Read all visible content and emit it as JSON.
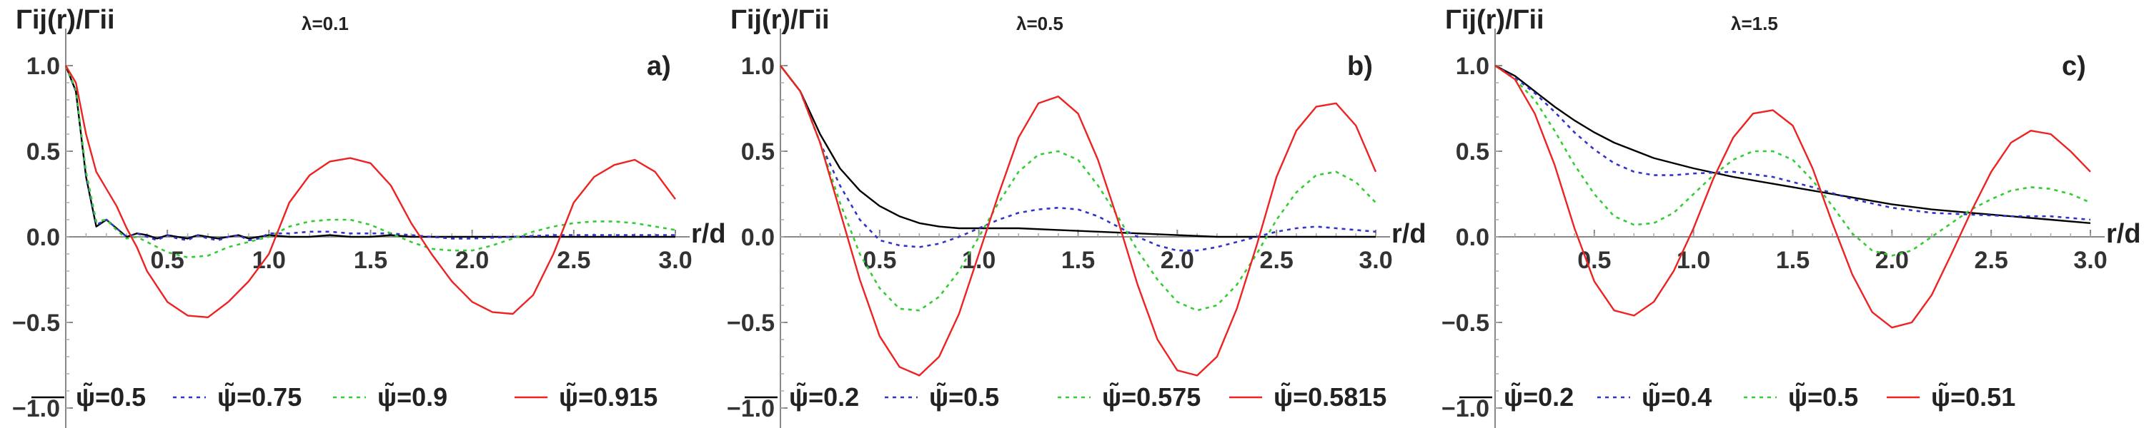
{
  "chart_data": [
    {
      "type": "line",
      "title": "λ=0.1",
      "panel_label": "a)",
      "ylabel": "Γij(r)/Γii",
      "xlabel": "r/d",
      "xlim": [
        0,
        3.0
      ],
      "ylim": [
        -1.0,
        1.0
      ],
      "xticks": [
        "0.5",
        "1.0",
        "1.5",
        "2.0",
        "2.5",
        "3.0"
      ],
      "yticks": [
        "1.0",
        "0.5",
        "0.0",
        "-0.5",
        "-1.0"
      ],
      "grid": false,
      "legend_position": "bottom",
      "series": [
        {
          "name": "ψ̃=0.5",
          "color": "#000000",
          "dash": "solid",
          "x": [
            0,
            0.05,
            0.1,
            0.15,
            0.2,
            0.25,
            0.3,
            0.35,
            0.4,
            0.45,
            0.5,
            0.55,
            0.6,
            0.65,
            0.7,
            0.75,
            0.8,
            0.85,
            0.9,
            0.95,
            1.0,
            1.1,
            1.2,
            1.3,
            1.4,
            1.5,
            1.6,
            1.7,
            1.8,
            1.9,
            2.0,
            2.2,
            2.4,
            2.6,
            2.8,
            3.0
          ],
          "y": [
            1.0,
            0.85,
            0.35,
            0.06,
            0.1,
            0.05,
            0.0,
            0.02,
            0.01,
            -0.01,
            0.01,
            0.0,
            -0.01,
            0.01,
            0.0,
            -0.01,
            0.0,
            0.01,
            -0.01,
            0.0,
            0.01,
            0.0,
            0.0,
            0.01,
            0.0,
            0.0,
            0.01,
            0.0,
            0.0,
            0.0,
            0.0,
            0.0,
            0.0,
            0.0,
            0.0,
            0.0
          ]
        },
        {
          "name": "ψ̃=0.75",
          "color": "#3333cc",
          "dash": "dotted",
          "x": [
            0,
            0.05,
            0.1,
            0.15,
            0.2,
            0.25,
            0.3,
            0.35,
            0.4,
            0.45,
            0.5,
            0.55,
            0.6,
            0.65,
            0.7,
            0.75,
            0.8,
            0.85,
            0.9,
            0.95,
            1.0,
            1.1,
            1.2,
            1.3,
            1.4,
            1.5,
            1.6,
            1.7,
            1.8,
            1.9,
            2.0,
            2.2,
            2.4,
            2.6,
            2.8,
            3.0
          ],
          "y": [
            1.0,
            0.85,
            0.36,
            0.07,
            0.1,
            0.05,
            0.0,
            0.02,
            0.0,
            -0.02,
            0.01,
            -0.01,
            -0.02,
            0.01,
            -0.01,
            -0.02,
            0.0,
            0.01,
            -0.02,
            -0.01,
            0.02,
            0.02,
            0.03,
            0.03,
            0.02,
            0.02,
            0.02,
            0.01,
            0.0,
            -0.01,
            -0.01,
            0.0,
            0.01,
            0.01,
            0.01,
            0.01
          ]
        },
        {
          "name": "ψ̃=0.9",
          "color": "#33cc33",
          "dash": "dotted",
          "x": [
            0,
            0.05,
            0.1,
            0.15,
            0.2,
            0.25,
            0.3,
            0.35,
            0.4,
            0.45,
            0.5,
            0.6,
            0.7,
            0.8,
            0.9,
            1.0,
            1.1,
            1.2,
            1.3,
            1.4,
            1.5,
            1.6,
            1.7,
            1.8,
            1.9,
            2.0,
            2.1,
            2.2,
            2.3,
            2.4,
            2.5,
            2.6,
            2.7,
            2.8,
            2.9,
            3.0
          ],
          "y": [
            1.0,
            0.86,
            0.38,
            0.09,
            0.1,
            0.04,
            -0.01,
            0.0,
            -0.03,
            -0.06,
            -0.09,
            -0.12,
            -0.11,
            -0.06,
            -0.03,
            0.0,
            0.06,
            0.09,
            0.1,
            0.1,
            0.07,
            0.02,
            -0.03,
            -0.07,
            -0.08,
            -0.08,
            -0.05,
            -0.01,
            0.03,
            0.06,
            0.08,
            0.09,
            0.09,
            0.08,
            0.06,
            0.04
          ]
        },
        {
          "name": "ψ̃=0.915",
          "color": "#ee2222",
          "dash": "solid",
          "x": [
            0,
            0.05,
            0.1,
            0.15,
            0.2,
            0.25,
            0.3,
            0.35,
            0.4,
            0.5,
            0.6,
            0.7,
            0.8,
            0.9,
            1.0,
            1.1,
            1.2,
            1.3,
            1.4,
            1.5,
            1.6,
            1.7,
            1.8,
            1.9,
            2.0,
            2.1,
            2.2,
            2.3,
            2.4,
            2.5,
            2.6,
            2.7,
            2.8,
            2.9,
            3.0
          ],
          "y": [
            1.0,
            0.9,
            0.6,
            0.38,
            0.28,
            0.18,
            0.05,
            -0.06,
            -0.2,
            -0.38,
            -0.46,
            -0.47,
            -0.38,
            -0.26,
            -0.1,
            0.2,
            0.36,
            0.44,
            0.46,
            0.43,
            0.3,
            0.08,
            -0.1,
            -0.26,
            -0.38,
            -0.44,
            -0.45,
            -0.34,
            -0.1,
            0.2,
            0.35,
            0.42,
            0.45,
            0.38,
            0.22
          ]
        }
      ]
    },
    {
      "type": "line",
      "title": "λ=0.5",
      "panel_label": "b)",
      "ylabel": "Γij(r)/Γii",
      "xlabel": "r/d",
      "xlim": [
        0,
        3.0
      ],
      "ylim": [
        -1.0,
        1.0
      ],
      "xticks": [
        "0.5",
        "1.0",
        "1.5",
        "2.0",
        "2.5",
        "3.0"
      ],
      "yticks": [
        "1.0",
        "0.5",
        "0.0",
        "-0.5",
        "-1.0"
      ],
      "grid": false,
      "legend_position": "bottom",
      "series": [
        {
          "name": "ψ̃=0.2",
          "color": "#000000",
          "dash": "solid",
          "x": [
            0,
            0.1,
            0.2,
            0.3,
            0.4,
            0.5,
            0.6,
            0.7,
            0.8,
            0.9,
            1.0,
            1.2,
            1.4,
            1.6,
            1.8,
            2.0,
            2.2,
            2.4,
            2.6,
            2.8,
            3.0
          ],
          "y": [
            1.0,
            0.85,
            0.6,
            0.4,
            0.27,
            0.18,
            0.12,
            0.08,
            0.06,
            0.05,
            0.05,
            0.05,
            0.04,
            0.03,
            0.02,
            0.01,
            0.0,
            0.0,
            0.0,
            0.0,
            0.0
          ]
        },
        {
          "name": "ψ̃=0.5",
          "color": "#3333cc",
          "dash": "dotted",
          "x": [
            0,
            0.1,
            0.2,
            0.3,
            0.4,
            0.5,
            0.6,
            0.7,
            0.8,
            0.9,
            1.0,
            1.1,
            1.2,
            1.3,
            1.4,
            1.5,
            1.6,
            1.7,
            1.8,
            1.9,
            2.0,
            2.1,
            2.2,
            2.3,
            2.4,
            2.5,
            2.6,
            2.7,
            2.8,
            2.9,
            3.0
          ],
          "y": [
            1.0,
            0.85,
            0.55,
            0.3,
            0.1,
            -0.02,
            -0.05,
            -0.06,
            -0.04,
            0.0,
            0.05,
            0.1,
            0.14,
            0.16,
            0.17,
            0.16,
            0.12,
            0.06,
            0.0,
            -0.05,
            -0.08,
            -0.08,
            -0.06,
            -0.03,
            0.0,
            0.03,
            0.05,
            0.06,
            0.05,
            0.04,
            0.03
          ]
        },
        {
          "name": "ψ̃=0.575",
          "color": "#33cc33",
          "dash": "dotted",
          "x": [
            0,
            0.1,
            0.2,
            0.3,
            0.4,
            0.5,
            0.6,
            0.7,
            0.8,
            0.9,
            1.0,
            1.1,
            1.2,
            1.3,
            1.4,
            1.5,
            1.6,
            1.7,
            1.8,
            1.9,
            2.0,
            2.1,
            2.2,
            2.3,
            2.4,
            2.5,
            2.6,
            2.7,
            2.8,
            2.9,
            3.0
          ],
          "y": [
            1.0,
            0.85,
            0.55,
            0.2,
            -0.1,
            -0.3,
            -0.42,
            -0.43,
            -0.35,
            -0.2,
            0.0,
            0.2,
            0.38,
            0.48,
            0.5,
            0.45,
            0.3,
            0.12,
            -0.08,
            -0.25,
            -0.38,
            -0.43,
            -0.4,
            -0.28,
            -0.1,
            0.1,
            0.26,
            0.36,
            0.38,
            0.32,
            0.2
          ]
        },
        {
          "name": "ψ̃=0.5815",
          "color": "#ee2222",
          "dash": "solid",
          "x": [
            0,
            0.1,
            0.2,
            0.3,
            0.4,
            0.5,
            0.6,
            0.7,
            0.8,
            0.9,
            1.0,
            1.1,
            1.2,
            1.3,
            1.4,
            1.5,
            1.6,
            1.7,
            1.8,
            1.9,
            2.0,
            2.1,
            2.2,
            2.3,
            2.4,
            2.5,
            2.6,
            2.7,
            2.8,
            2.9,
            3.0
          ],
          "y": [
            1.0,
            0.85,
            0.55,
            0.15,
            -0.25,
            -0.58,
            -0.76,
            -0.81,
            -0.7,
            -0.45,
            -0.1,
            0.25,
            0.58,
            0.78,
            0.82,
            0.72,
            0.45,
            0.1,
            -0.28,
            -0.6,
            -0.78,
            -0.81,
            -0.7,
            -0.42,
            -0.05,
            0.35,
            0.62,
            0.76,
            0.78,
            0.65,
            0.38
          ]
        }
      ]
    },
    {
      "type": "line",
      "title": "λ=1.5",
      "panel_label": "c)",
      "ylabel": "Γij(r)/Γii",
      "xlabel": "r/d",
      "xlim": [
        0,
        3.0
      ],
      "ylim": [
        -1.0,
        1.0
      ],
      "xticks": [
        "0.5",
        "1.0",
        "1.5",
        "2.0",
        "2.5",
        "3.0"
      ],
      "yticks": [
        "1.0",
        "0.5",
        "0.0",
        "-0.5",
        "-1.0"
      ],
      "grid": false,
      "legend_position": "bottom",
      "series": [
        {
          "name": "ψ̃=0.2",
          "color": "#000000",
          "dash": "solid",
          "x": [
            0,
            0.1,
            0.2,
            0.3,
            0.4,
            0.5,
            0.6,
            0.8,
            1.0,
            1.2,
            1.4,
            1.6,
            1.8,
            2.0,
            2.2,
            2.4,
            2.6,
            2.8,
            3.0
          ],
          "y": [
            1.0,
            0.94,
            0.85,
            0.76,
            0.68,
            0.61,
            0.55,
            0.46,
            0.4,
            0.35,
            0.31,
            0.27,
            0.23,
            0.19,
            0.16,
            0.14,
            0.12,
            0.1,
            0.08
          ]
        },
        {
          "name": "ψ̃=0.4",
          "color": "#3333cc",
          "dash": "dotted",
          "x": [
            0,
            0.1,
            0.2,
            0.3,
            0.4,
            0.5,
            0.6,
            0.7,
            0.8,
            0.9,
            1.0,
            1.2,
            1.4,
            1.6,
            1.8,
            2.0,
            2.2,
            2.4,
            2.6,
            2.8,
            3.0
          ],
          "y": [
            1.0,
            0.93,
            0.84,
            0.73,
            0.61,
            0.51,
            0.43,
            0.38,
            0.36,
            0.36,
            0.37,
            0.38,
            0.35,
            0.29,
            0.22,
            0.17,
            0.14,
            0.13,
            0.12,
            0.12,
            0.1
          ]
        },
        {
          "name": "ψ̃=0.5",
          "color": "#33cc33",
          "dash": "dotted",
          "x": [
            0,
            0.1,
            0.2,
            0.3,
            0.4,
            0.5,
            0.6,
            0.7,
            0.8,
            0.9,
            1.0,
            1.1,
            1.2,
            1.3,
            1.4,
            1.5,
            1.6,
            1.7,
            1.8,
            1.9,
            2.0,
            2.1,
            2.2,
            2.3,
            2.4,
            2.5,
            2.6,
            2.7,
            2.8,
            2.9,
            3.0
          ],
          "y": [
            1.0,
            0.92,
            0.8,
            0.62,
            0.42,
            0.25,
            0.12,
            0.07,
            0.08,
            0.14,
            0.25,
            0.36,
            0.45,
            0.5,
            0.5,
            0.45,
            0.33,
            0.18,
            0.02,
            -0.08,
            -0.11,
            -0.08,
            0.0,
            0.08,
            0.16,
            0.22,
            0.27,
            0.29,
            0.28,
            0.25,
            0.2
          ]
        },
        {
          "name": "ψ̃=0.51",
          "color": "#ee2222",
          "dash": "solid",
          "x": [
            0,
            0.1,
            0.2,
            0.3,
            0.4,
            0.5,
            0.6,
            0.7,
            0.8,
            0.9,
            1.0,
            1.1,
            1.2,
            1.3,
            1.4,
            1.5,
            1.6,
            1.7,
            1.8,
            1.9,
            2.0,
            2.1,
            2.2,
            2.3,
            2.4,
            2.5,
            2.6,
            2.7,
            2.8,
            2.9,
            3.0
          ],
          "y": [
            1.0,
            0.92,
            0.72,
            0.42,
            0.05,
            -0.26,
            -0.43,
            -0.46,
            -0.38,
            -0.2,
            0.05,
            0.34,
            0.58,
            0.72,
            0.74,
            0.65,
            0.4,
            0.08,
            -0.22,
            -0.44,
            -0.53,
            -0.5,
            -0.34,
            -0.1,
            0.15,
            0.38,
            0.55,
            0.62,
            0.6,
            0.5,
            0.38
          ]
        }
      ]
    }
  ]
}
